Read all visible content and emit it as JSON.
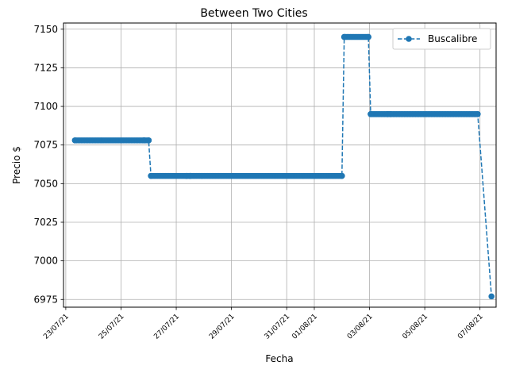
{
  "chart_data": {
    "type": "line",
    "title": "Between Two Cities",
    "xlabel": "Fecha",
    "ylabel": "Precio $",
    "x_ticks": [
      "23/07/21",
      "25/07/21",
      "27/07/21",
      "29/07/21",
      "31/07/21",
      "01/08/21",
      "03/08/21",
      "05/08/21",
      "07/08/21"
    ],
    "y_ticks": [
      "6975",
      "7000",
      "7025",
      "7050",
      "7075",
      "7100",
      "7125",
      "7150"
    ],
    "ylim": [
      6970,
      7154
    ],
    "xlim": [
      "2021-07-22T22:00",
      "2021-08-07T14:00"
    ],
    "grid": true,
    "legend_position": "top-right",
    "line_style": "dashed",
    "marker": "circle",
    "color": "#1f77b4",
    "series": [
      {
        "name": "Buscalibre",
        "points": [
          [
            "2021-07-23T08:00",
            7078
          ],
          [
            "2021-07-25T20:00",
            7078
          ],
          [
            "2021-07-26T00:00",
            7078
          ],
          [
            "2021-07-26T02:00",
            7055
          ],
          [
            "2021-07-27T09:00",
            7055
          ],
          [
            "2021-07-27T12:00",
            7055
          ],
          [
            "2021-08-02T00:00",
            7055
          ],
          [
            "2021-08-02T02:00",
            7145
          ],
          [
            "2021-08-02T23:00",
            7145
          ],
          [
            "2021-08-03T01:00",
            7095
          ],
          [
            "2021-08-03T16:00",
            7095
          ],
          [
            "2021-08-03T18:00",
            7095
          ],
          [
            "2021-08-06T22:00",
            7095
          ],
          [
            "2021-08-07T10:00",
            6977
          ]
        ]
      }
    ]
  }
}
